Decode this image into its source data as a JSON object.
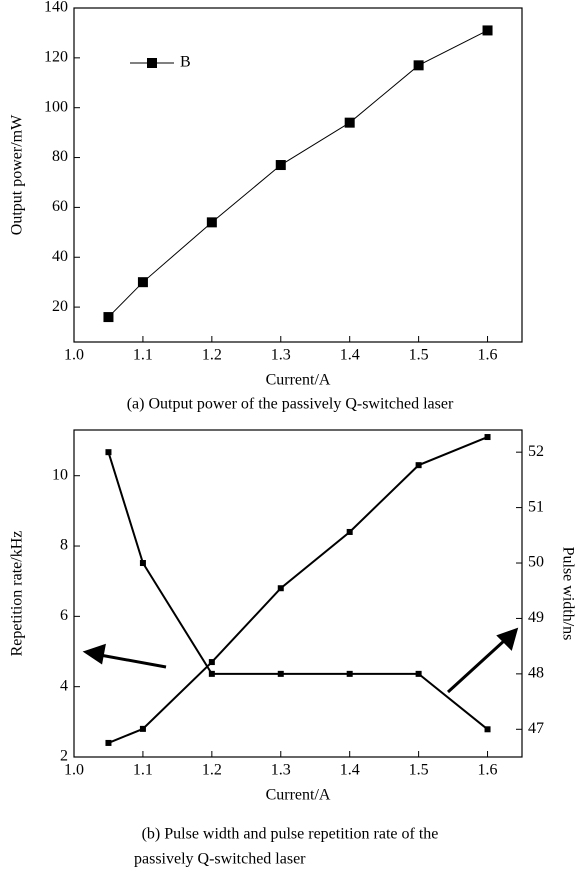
{
  "chart_data": [
    {
      "type": "line",
      "caption": "(a) Output power of the passively Q-switched laser",
      "x_label": "Current/A",
      "y_label": "Output power/mW",
      "x": [
        1.05,
        1.1,
        1.2,
        1.3,
        1.4,
        1.5,
        1.6
      ],
      "series": [
        {
          "name": "B",
          "color": "#000000",
          "values": [
            16,
            30,
            54,
            77,
            94,
            117,
            131
          ]
        }
      ],
      "xlim": [
        1.0,
        1.65
      ],
      "xticks": [
        {
          "value": 1.0,
          "label": "1.0"
        },
        1.1,
        1.2,
        1.3,
        1.4,
        1.5,
        1.6
      ],
      "ylim": [
        6,
        140
      ],
      "yticks": [
        20,
        40,
        60,
        80,
        100,
        120,
        140
      ],
      "legend": "upper left"
    },
    {
      "type": "line",
      "caption": [
        "(b) Pulse width and pulse repetition rate of the",
        "passively Q-switched laser"
      ],
      "x_label": "Current/A",
      "y_label": "Repetition rate/kHz",
      "y2_label": "Pulse width/ns",
      "x": [
        1.05,
        1.1,
        1.2,
        1.3,
        1.4,
        1.5,
        1.6
      ],
      "series": [
        {
          "color": "#000000",
          "values": [
            2.4,
            2.8,
            4.7,
            6.8,
            8.4,
            10.3,
            11.1
          ]
        },
        {
          "color": "#000000",
          "axis": "y2",
          "values": [
            52,
            50,
            48,
            48,
            48,
            48,
            47
          ]
        }
      ],
      "xlim": [
        1.0,
        1.65
      ],
      "xticks": [
        {
          "value": 1.0,
          "label": "1.0"
        },
        1.1,
        1.2,
        1.3,
        1.4,
        1.5,
        1.6
      ],
      "ylim": [
        2,
        11.3
      ],
      "yticks": [
        2,
        4,
        6,
        8,
        10
      ],
      "y2lim": [
        46.5,
        52.4
      ],
      "y2ticks": [
        47,
        48,
        49,
        50,
        51,
        52
      ]
    }
  ]
}
